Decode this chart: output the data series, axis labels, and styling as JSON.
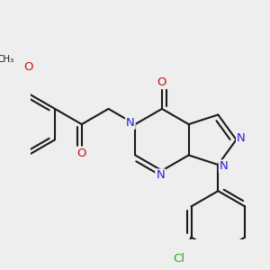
{
  "bg_color": "#eeeeee",
  "bond_color": "#1a1a1a",
  "bond_lw": 1.5,
  "dbo": 0.06,
  "atom_colors": {
    "N": "#2222dd",
    "O": "#cc1111",
    "Cl": "#22aa22",
    "C": "#1a1a1a"
  },
  "fs": 9.5
}
